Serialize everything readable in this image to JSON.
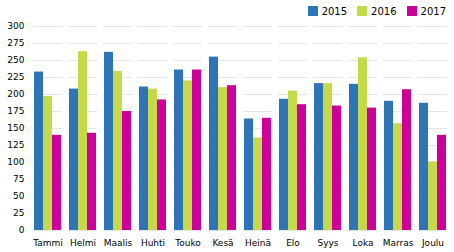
{
  "chart_data": {
    "type": "bar",
    "categories": [
      "Tammi",
      "Helmi",
      "Maalis",
      "Huhti",
      "Touko",
      "Kesä",
      "Heinä",
      "Elo",
      "Syys",
      "Loka",
      "Marras",
      "Joulu"
    ],
    "series": [
      {
        "name": "2015",
        "color": "#2E75B6",
        "values": [
          233,
          208,
          262,
          211,
          236,
          255,
          164,
          193,
          216,
          215,
          190,
          187
        ]
      },
      {
        "name": "2016",
        "color": "#C6D94A",
        "values": [
          197,
          263,
          234,
          208,
          220,
          210,
          136,
          205,
          216,
          254,
          157,
          101
        ]
      },
      {
        "name": "2017",
        "color": "#CC0099",
        "values": [
          140,
          143,
          175,
          192,
          236,
          213,
          165,
          185,
          183,
          180,
          207,
          140
        ]
      }
    ],
    "ylim": [
      0,
      300
    ],
    "yticks": [
      0,
      25,
      50,
      75,
      100,
      125,
      150,
      175,
      200,
      225,
      250,
      275,
      300
    ],
    "grid": true,
    "legend": "upper right"
  }
}
